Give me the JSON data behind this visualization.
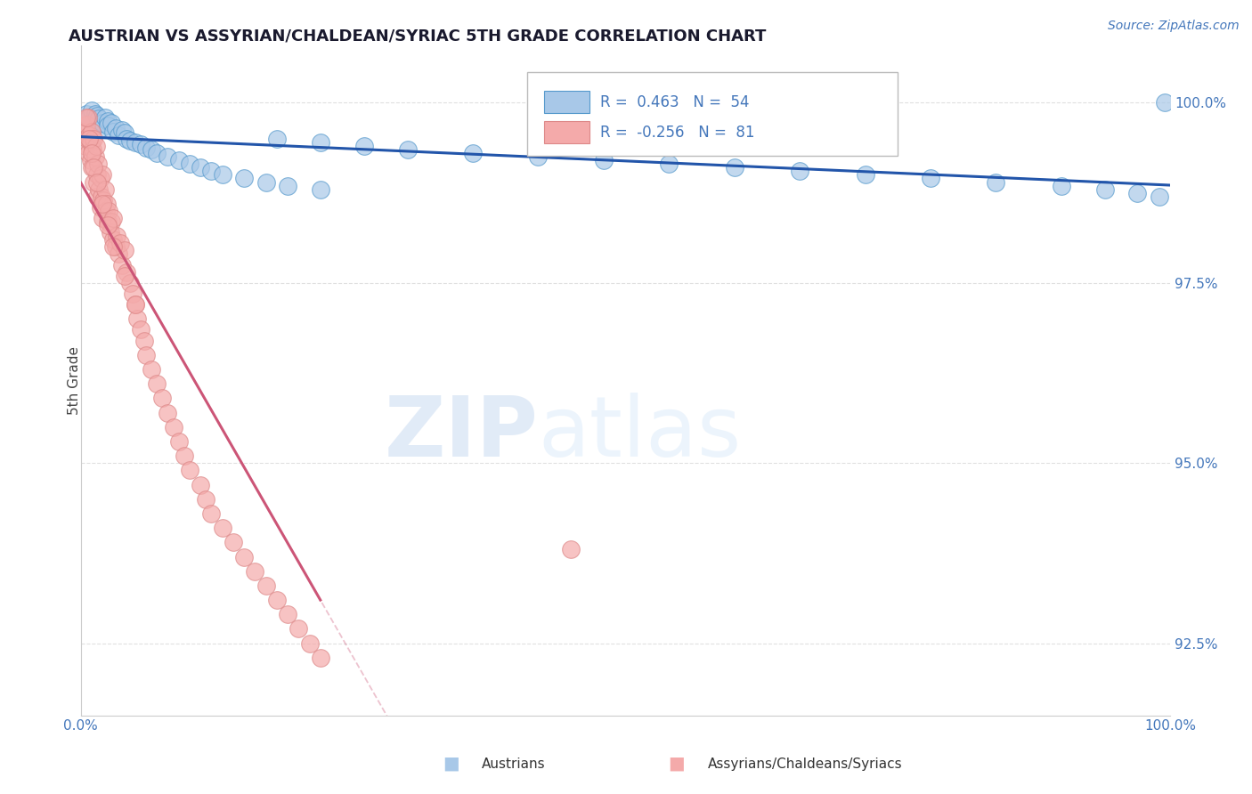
{
  "title": "AUSTRIAN VS ASSYRIAN/CHALDEAN/SYRIAC 5TH GRADE CORRELATION CHART",
  "source_text": "Source: ZipAtlas.com",
  "ylabel": "5th Grade",
  "y_ticks": [
    92.5,
    95.0,
    97.5,
    100.0
  ],
  "y_tick_labels": [
    "92.5%",
    "95.0%",
    "97.5%",
    "100.0%"
  ],
  "xmin": 0.0,
  "xmax": 1.0,
  "ymin": 91.5,
  "ymax": 100.8,
  "watermark_zip": "ZIP",
  "watermark_atlas": "atlas",
  "legend_blue_label": "Austrians",
  "legend_pink_label": "Assyrians/Chaldeans/Syriacs",
  "r_blue": 0.463,
  "n_blue": 54,
  "r_pink": -0.256,
  "n_pink": 81,
  "blue_color": "#a8c8e8",
  "pink_color": "#f4aaaa",
  "blue_edge_color": "#5599cc",
  "pink_edge_color": "#dd8888",
  "blue_line_color": "#2255aa",
  "pink_line_color": "#cc5577",
  "blue_line_color_text": "#3366bb",
  "grid_color": "#dddddd",
  "tick_color": "#4477bb",
  "blue_scatter_x": [
    0.005,
    0.008,
    0.01,
    0.012,
    0.013,
    0.015,
    0.015,
    0.017,
    0.018,
    0.02,
    0.022,
    0.025,
    0.025,
    0.028,
    0.03,
    0.032,
    0.035,
    0.038,
    0.04,
    0.042,
    0.045,
    0.05,
    0.055,
    0.06,
    0.065,
    0.07,
    0.08,
    0.09,
    0.1,
    0.11,
    0.12,
    0.13,
    0.15,
    0.17,
    0.19,
    0.22,
    0.18,
    0.22,
    0.26,
    0.3,
    0.36,
    0.42,
    0.48,
    0.54,
    0.6,
    0.66,
    0.72,
    0.78,
    0.84,
    0.9,
    0.94,
    0.97,
    0.99,
    0.995
  ],
  "blue_scatter_y": [
    99.85,
    99.8,
    99.9,
    99.75,
    99.85,
    99.82,
    99.7,
    99.78,
    99.65,
    99.72,
    99.8,
    99.75,
    99.68,
    99.72,
    99.6,
    99.65,
    99.55,
    99.62,
    99.58,
    99.5,
    99.48,
    99.45,
    99.42,
    99.38,
    99.35,
    99.3,
    99.25,
    99.2,
    99.15,
    99.1,
    99.05,
    99.0,
    98.95,
    98.9,
    98.85,
    98.8,
    99.5,
    99.45,
    99.4,
    99.35,
    99.3,
    99.25,
    99.2,
    99.15,
    99.1,
    99.05,
    99.0,
    98.95,
    98.9,
    98.85,
    98.8,
    98.75,
    98.7,
    100.0
  ],
  "pink_scatter_x": [
    0.003,
    0.004,
    0.005,
    0.006,
    0.007,
    0.007,
    0.008,
    0.009,
    0.009,
    0.01,
    0.01,
    0.011,
    0.012,
    0.012,
    0.013,
    0.014,
    0.015,
    0.015,
    0.016,
    0.017,
    0.018,
    0.018,
    0.019,
    0.02,
    0.02,
    0.021,
    0.022,
    0.023,
    0.024,
    0.025,
    0.026,
    0.027,
    0.028,
    0.03,
    0.03,
    0.032,
    0.033,
    0.035,
    0.036,
    0.038,
    0.04,
    0.042,
    0.045,
    0.048,
    0.05,
    0.052,
    0.055,
    0.058,
    0.06,
    0.065,
    0.07,
    0.075,
    0.08,
    0.085,
    0.09,
    0.095,
    0.1,
    0.11,
    0.115,
    0.12,
    0.13,
    0.14,
    0.15,
    0.16,
    0.17,
    0.18,
    0.19,
    0.2,
    0.21,
    0.22,
    0.005,
    0.008,
    0.01,
    0.012,
    0.015,
    0.02,
    0.025,
    0.03,
    0.04,
    0.05,
    0.45
  ],
  "pink_scatter_y": [
    99.6,
    99.4,
    99.7,
    99.5,
    99.8,
    99.3,
    99.55,
    99.45,
    99.2,
    99.6,
    99.1,
    99.35,
    99.5,
    98.9,
    99.25,
    99.4,
    99.0,
    98.7,
    99.15,
    98.8,
    98.95,
    98.55,
    98.7,
    99.0,
    98.4,
    98.65,
    98.8,
    98.5,
    98.6,
    98.35,
    98.5,
    98.2,
    98.35,
    98.1,
    98.4,
    98.0,
    98.15,
    97.9,
    98.05,
    97.75,
    97.95,
    97.65,
    97.5,
    97.35,
    97.2,
    97.0,
    96.85,
    96.7,
    96.5,
    96.3,
    96.1,
    95.9,
    95.7,
    95.5,
    95.3,
    95.1,
    94.9,
    94.7,
    94.5,
    94.3,
    94.1,
    93.9,
    93.7,
    93.5,
    93.3,
    93.1,
    92.9,
    92.7,
    92.5,
    92.3,
    99.8,
    99.5,
    99.3,
    99.1,
    98.9,
    98.6,
    98.3,
    98.0,
    97.6,
    97.2,
    93.8
  ]
}
